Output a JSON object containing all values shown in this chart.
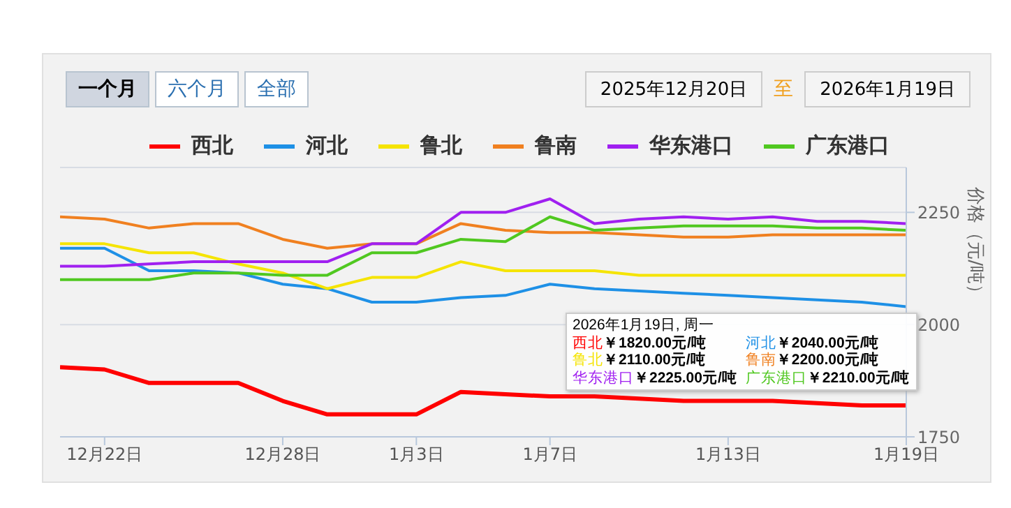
{
  "chart_data": {
    "type": "line",
    "ylabel": "价格（元/吨）",
    "categories": [
      null,
      "12月22日",
      null,
      null,
      null,
      "12月28日",
      null,
      null,
      "1月3日",
      null,
      null,
      "1月7日",
      null,
      null,
      null,
      "1月13日",
      null,
      null,
      null,
      "1月19日"
    ],
    "series": [
      {
        "name": "西北",
        "color": "#ff0000",
        "values": [
          1905,
          1900,
          1870,
          1870,
          1870,
          1830,
          1800,
          1800,
          1800,
          1850,
          1845,
          1840,
          1840,
          1835,
          1830,
          1830,
          1830,
          1825,
          1820,
          1820
        ]
      },
      {
        "name": "河北",
        "color": "#1e90e6",
        "values": [
          2170,
          2170,
          2120,
          2120,
          2115,
          2090,
          2080,
          2050,
          2050,
          2060,
          2065,
          2090,
          2080,
          2075,
          2070,
          2065,
          2060,
          2055,
          2050,
          2040
        ]
      },
      {
        "name": "鲁北",
        "color": "#f5e400",
        "values": [
          2180,
          2180,
          2160,
          2160,
          2135,
          2115,
          2080,
          2105,
          2105,
          2140,
          2120,
          2120,
          2120,
          2110,
          2110,
          2110,
          2110,
          2110,
          2110,
          2110
        ]
      },
      {
        "name": "鲁南",
        "color": "#f08020",
        "values": [
          2240,
          2235,
          2215,
          2225,
          2225,
          2190,
          2170,
          2180,
          2180,
          2225,
          2210,
          2205,
          2205,
          2200,
          2195,
          2195,
          2200,
          2200,
          2200,
          2200
        ]
      },
      {
        "name": "华东港口",
        "color": "#a020f0",
        "values": [
          2130,
          2130,
          2135,
          2140,
          2140,
          2140,
          2140,
          2180,
          2180,
          2250,
          2250,
          2280,
          2225,
          2235,
          2240,
          2235,
          2240,
          2230,
          2230,
          2225
        ]
      },
      {
        "name": "广东港口",
        "color": "#50c820",
        "values": [
          2100,
          2100,
          2100,
          2115,
          2115,
          2110,
          2110,
          2160,
          2160,
          2190,
          2185,
          2240,
          2210,
          2215,
          2220,
          2220,
          2220,
          2215,
          2215,
          2210
        ]
      }
    ],
    "ylim": [
      1750,
      2350
    ],
    "yticks": [
      1750,
      2000,
      2250
    ],
    "grid": "y",
    "legend": "top",
    "marker": "none",
    "line_style": "solid",
    "annotations": [
      "一个月",
      "六个月",
      "全部",
      "2025年12月20日",
      "至",
      "2026年1月19日",
      "2026年1月19日, 周一",
      "￥1820.00元/吨",
      "￥2040.00元/吨",
      "￥2110.00元/吨",
      "￥2200.00元/吨",
      "￥2225.00元/吨",
      "￥2210.00元/吨"
    ]
  }
}
